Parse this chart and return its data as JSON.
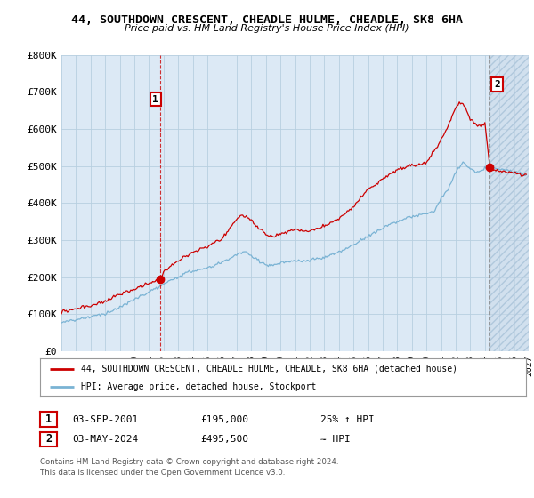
{
  "title": "44, SOUTHDOWN CRESCENT, CHEADLE HULME, CHEADLE, SK8 6HA",
  "subtitle": "Price paid vs. HM Land Registry's House Price Index (HPI)",
  "ylabel_ticks": [
    "£0",
    "£100K",
    "£200K",
    "£300K",
    "£400K",
    "£500K",
    "£600K",
    "£700K",
    "£800K"
  ],
  "ytick_values": [
    0,
    100000,
    200000,
    300000,
    400000,
    500000,
    600000,
    700000,
    800000
  ],
  "ylim": [
    0,
    800000
  ],
  "xlim_start": 1995,
  "xlim_end": 2027,
  "grid_color": "#b8cfe0",
  "bg_color": "#dce9f5",
  "sale1_x": 2001.75,
  "sale1_y": 195000,
  "sale2_x": 2024.33,
  "sale2_y": 495500,
  "sale_color": "#cc0000",
  "hpi_color": "#7ab3d4",
  "legend_label1": "44, SOUTHDOWN CRESCENT, CHEADLE HULME, CHEADLE, SK8 6HA (detached house)",
  "legend_label2": "HPI: Average price, detached house, Stockport",
  "footer1": "Contains HM Land Registry data © Crown copyright and database right 2024.",
  "footer2": "This data is licensed under the Open Government Licence v3.0.",
  "table_row1": [
    "1",
    "03-SEP-2001",
    "£195,000",
    "25% ↑ HPI"
  ],
  "table_row2": [
    "2",
    "03-MAY-2024",
    "£495,500",
    "≈ HPI"
  ],
  "sale_line_color": "#cc0000",
  "future_region_color": "#c8d8e8"
}
